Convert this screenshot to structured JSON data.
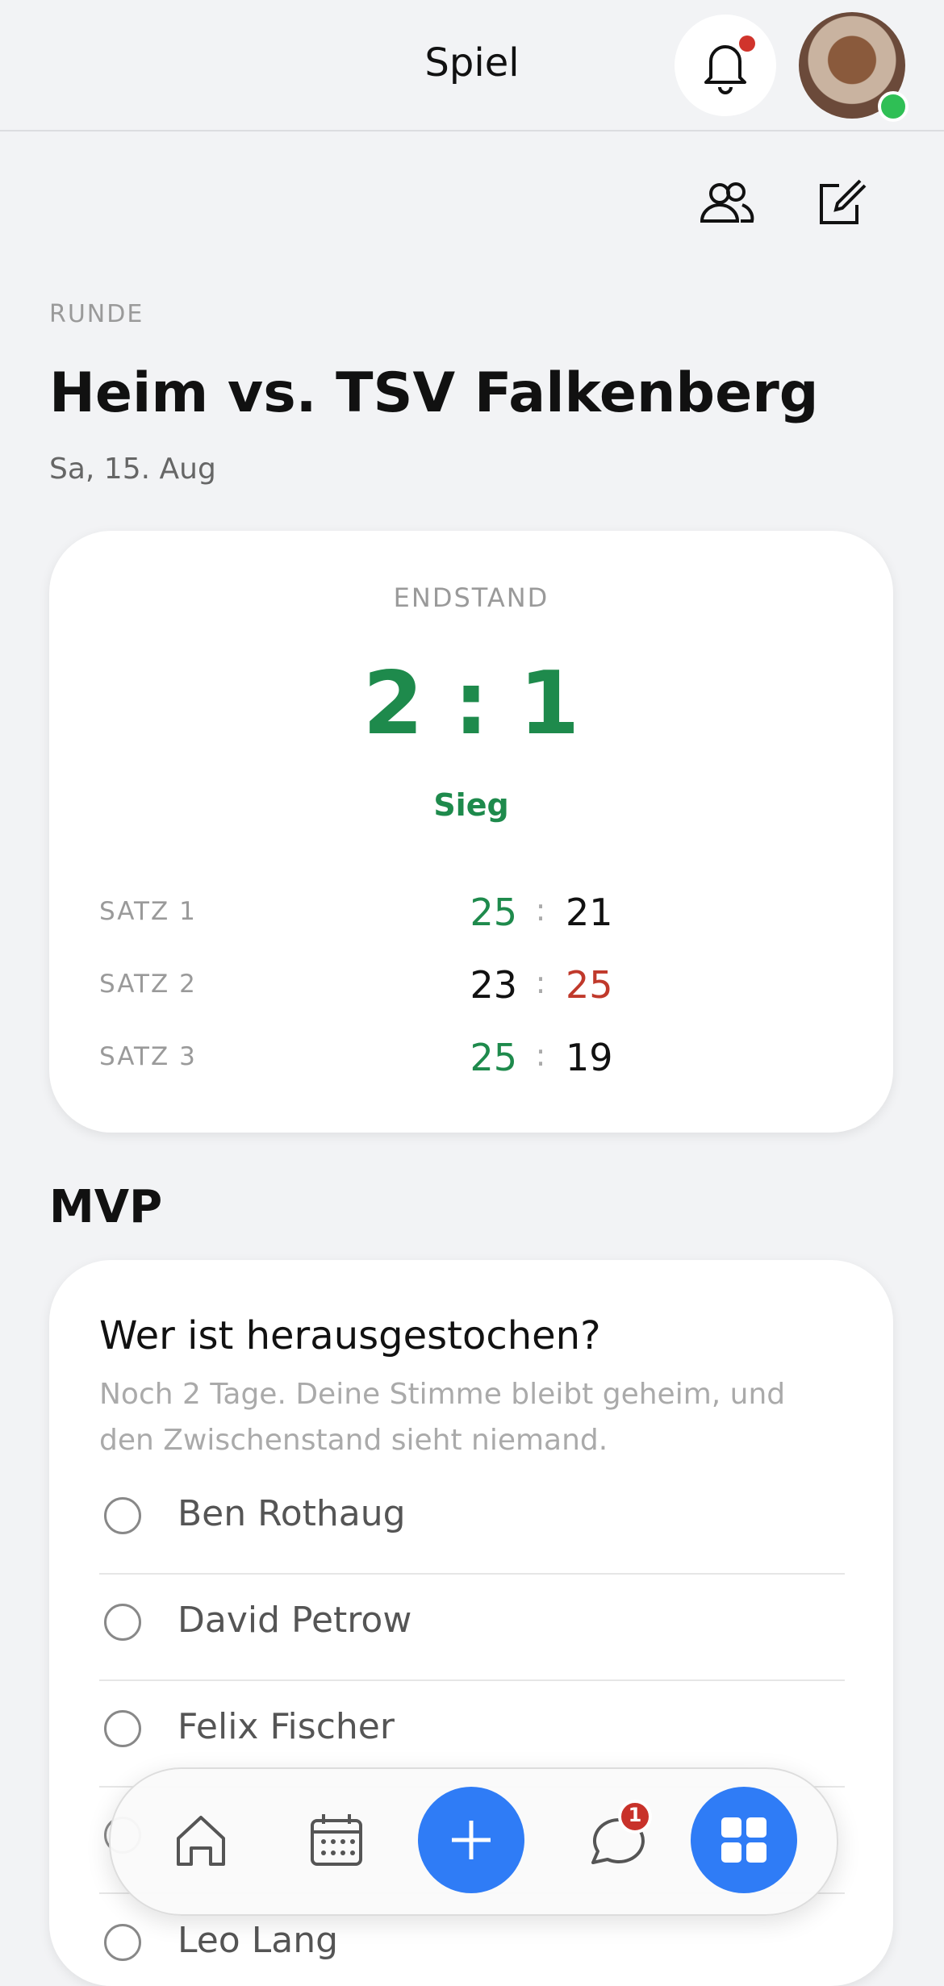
{
  "header": {
    "title": "Spiel"
  },
  "match": {
    "round_label": "RUNDE",
    "title": "Heim vs. TSV Falkenberg",
    "date": "Sa, 15. Aug"
  },
  "result": {
    "label": "ENDSTAND",
    "home": "2",
    "separator": ":",
    "away": "1",
    "outcome": "Sieg",
    "sets": [
      {
        "label": "SATZ 1",
        "home": "25",
        "away": "21"
      },
      {
        "label": "SATZ 2",
        "home": "23",
        "away": "25"
      },
      {
        "label": "SATZ 3",
        "home": "25",
        "away": "19"
      }
    ]
  },
  "mvp": {
    "heading": "MVP",
    "question": "Wer ist herausgestochen?",
    "subtitle": "Noch 2 Tage. Deine Stimme bleibt geheim, und den Zwischenstand sieht niemand.",
    "options": [
      "Ben Rothaug",
      "David Petrow",
      "Felix Fischer",
      "Leo Lang"
    ]
  },
  "nav": {
    "chat_badge": "1"
  }
}
